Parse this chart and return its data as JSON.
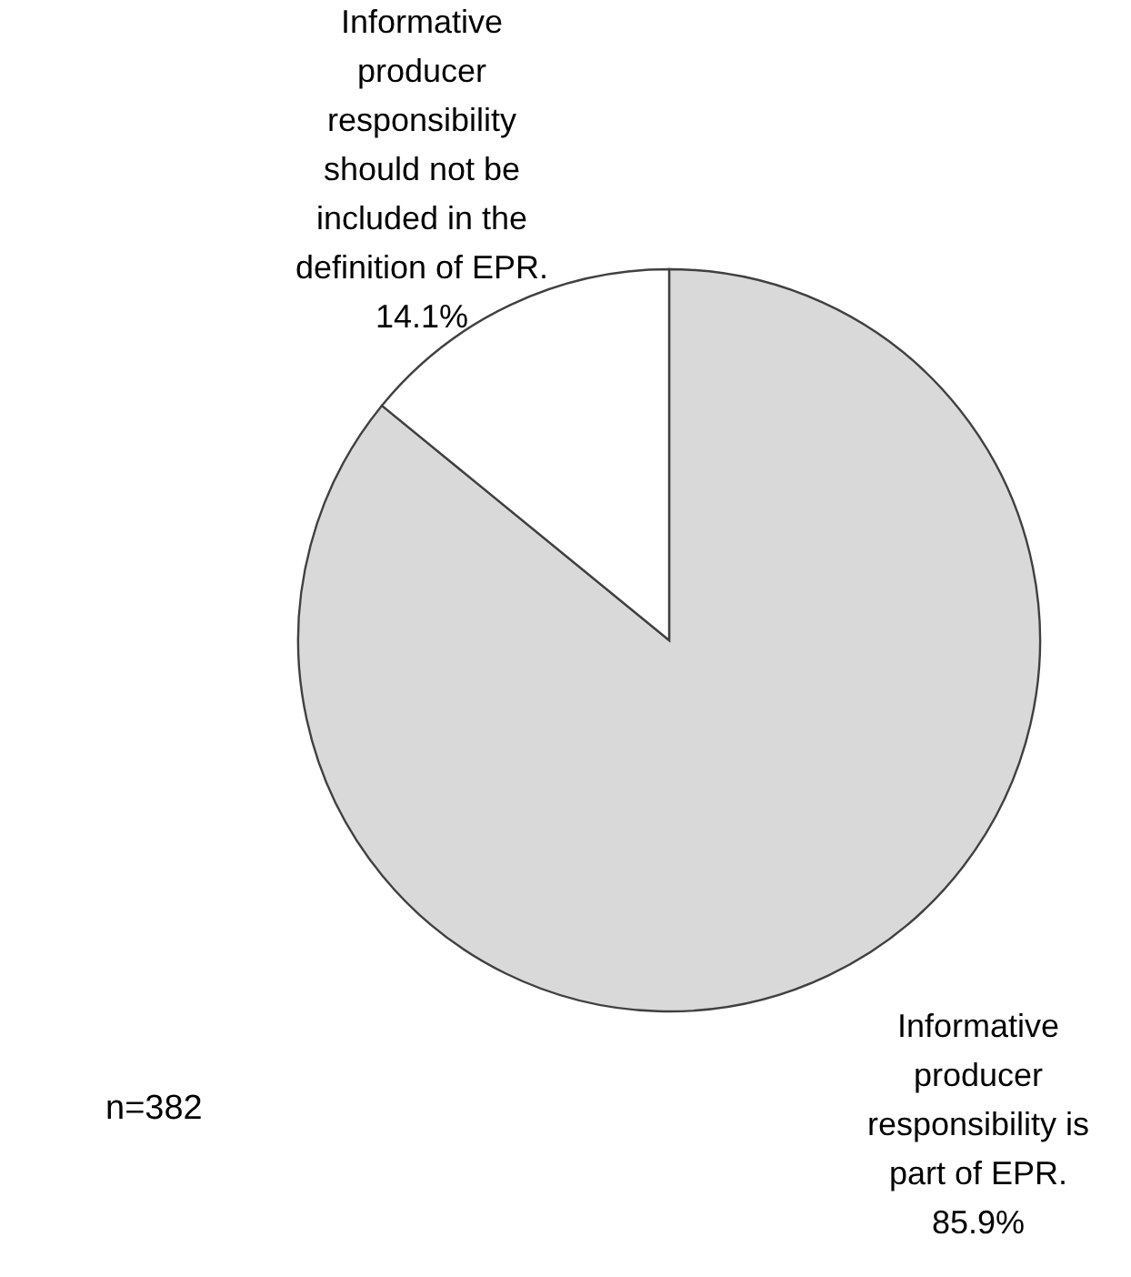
{
  "chart_data": {
    "type": "pie",
    "categories": [
      "Informative producer responsibility is part of EPR.",
      "Informative producer responsibility should not be included in the definition of EPR."
    ],
    "values": [
      85.9,
      14.1
    ],
    "colors": [
      "#d9d9d9",
      "#ffffff"
    ],
    "value_labels": [
      "85.9%",
      "14.1%"
    ],
    "annotations": [
      "n=382"
    ]
  }
}
